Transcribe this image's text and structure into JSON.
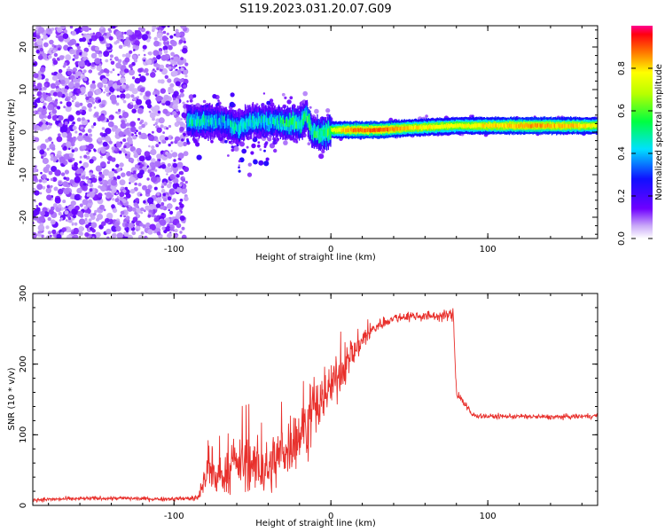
{
  "title": "S119.2023.031.20.07.G09",
  "chart_data": [
    {
      "type": "heatmap",
      "xlabel": "Height of straight line (km)",
      "ylabel": "Frequency (Hz)",
      "xlim": [
        -190,
        170
      ],
      "ylim": [
        -25,
        25
      ],
      "xticks": [
        -100,
        0,
        100
      ],
      "yticks": [
        -20,
        -10,
        0,
        10,
        20
      ],
      "colorbar": {
        "label": "Normalized spectral amplitude",
        "ticks": [
          0.0,
          0.2,
          0.4,
          0.6,
          0.8
        ],
        "range": [
          0,
          1
        ]
      },
      "grid": false,
      "noise_region_x": [
        -190,
        -92
      ],
      "noise_amplitude": 0.15,
      "ridge": [
        {
          "x": -92,
          "f": 2.5,
          "amp": 0.5
        },
        {
          "x": -80,
          "f": 2.5,
          "amp": 0.5
        },
        {
          "x": -70,
          "f": 2.5,
          "amp": 0.45
        },
        {
          "x": -60,
          "f": 1.0,
          "amp": 0.5
        },
        {
          "x": -50,
          "f": 2.5,
          "amp": 0.5
        },
        {
          "x": -40,
          "f": 2.5,
          "amp": 0.5
        },
        {
          "x": -30,
          "f": 2.0,
          "amp": 0.55
        },
        {
          "x": -20,
          "f": 2.0,
          "amp": 0.6
        },
        {
          "x": -16,
          "f": 4.0,
          "amp": 0.6
        },
        {
          "x": -12,
          "f": 0.0,
          "amp": 0.55
        },
        {
          "x": -6,
          "f": -0.5,
          "amp": 0.6
        },
        {
          "x": 0,
          "f": 0.5,
          "amp": 0.7
        },
        {
          "x": 10,
          "f": 0.5,
          "amp": 0.85
        },
        {
          "x": 30,
          "f": 0.5,
          "amp": 0.9
        },
        {
          "x": 50,
          "f": 1.0,
          "amp": 0.8
        },
        {
          "x": 80,
          "f": 1.5,
          "amp": 0.75
        },
        {
          "x": 100,
          "f": 1.5,
          "amp": 0.8
        },
        {
          "x": 130,
          "f": 1.5,
          "amp": 0.85
        },
        {
          "x": 160,
          "f": 1.5,
          "amp": 0.8
        },
        {
          "x": 170,
          "f": 1.5,
          "amp": 0.75
        }
      ]
    },
    {
      "type": "line",
      "xlabel": "Height of straight line (km)",
      "ylabel": "SNR (10 * v/v)",
      "xlim": [
        -190,
        170
      ],
      "ylim": [
        0,
        300
      ],
      "xticks": [
        -100,
        0,
        100
      ],
      "yticks": [
        0,
        100,
        200,
        300
      ],
      "grid": false,
      "series": [
        {
          "color": "#e8302c",
          "x": [
            -190,
            -170,
            -150,
            -130,
            -110,
            -90,
            -85,
            -80,
            -70,
            -60,
            -50,
            -40,
            -30,
            -20,
            -10,
            0,
            10,
            20,
            30,
            40,
            50,
            60,
            70,
            78,
            80,
            85,
            90,
            100,
            120,
            140,
            160,
            170
          ],
          "y": [
            8,
            9,
            10,
            10,
            9,
            10,
            10,
            40,
            40,
            60,
            55,
            50,
            80,
            100,
            130,
            170,
            200,
            235,
            255,
            265,
            268,
            268,
            268,
            270,
            160,
            145,
            128,
            126,
            126,
            125,
            126,
            127
          ],
          "jitter": [
            4,
            4,
            4,
            4,
            4,
            4,
            10,
            30,
            35,
            45,
            50,
            55,
            65,
            60,
            55,
            45,
            35,
            25,
            12,
            10,
            10,
            10,
            10,
            12,
            12,
            10,
            6,
            5,
            5,
            5,
            5,
            5
          ]
        }
      ]
    }
  ]
}
